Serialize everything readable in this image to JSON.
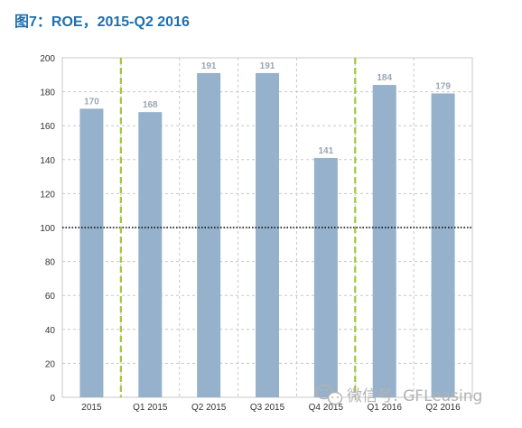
{
  "title": "图7：ROE，2015-Q2 2016",
  "watermark": {
    "text": "微信号: GFLeasing",
    "icon": "wechat-icon"
  },
  "colors": {
    "title": "#1f6fad",
    "bar": "#95b1cb",
    "reference_line": "#000000",
    "divider": "#a4c639",
    "grid": "#c8c8c8",
    "data_label": "#9aa6b2"
  },
  "chart_data": {
    "type": "bar",
    "title": "ROE，2015-Q2 2016",
    "categories": [
      "2015",
      "Q1 2015",
      "Q2 2015",
      "Q3 2015",
      "Q4 2015",
      "Q1 2016",
      "Q2 2016"
    ],
    "values": [
      170,
      168,
      191,
      191,
      141,
      184,
      179
    ],
    "value_labels": [
      "170",
      "168",
      "191",
      "191",
      "141",
      "184",
      "179"
    ],
    "xlabel": "",
    "ylabel": "",
    "ylim": [
      0,
      200
    ],
    "yticks": [
      "0",
      "20",
      "40",
      "60",
      "80",
      "100",
      "120",
      "140",
      "160",
      "180",
      "200"
    ],
    "reference_line": {
      "y": 100,
      "style": "dotted"
    },
    "dividers_after_categories": [
      "2015",
      "Q4 2015"
    ],
    "grid": true,
    "legend": "none"
  }
}
